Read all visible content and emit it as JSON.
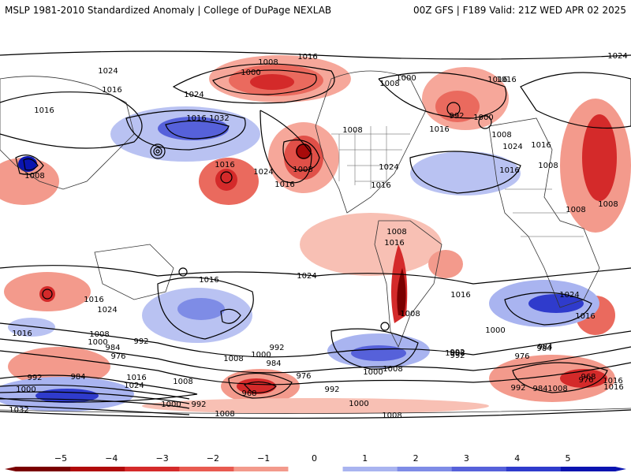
{
  "header": {
    "left": "MSLP 1981-2010 Standardized Anomaly | College of DuPage NEXLAB",
    "right": "00Z GFS | F189 Valid: 21Z WED APR 02 2025"
  },
  "colorbar": {
    "ticks": [
      {
        "value": -5,
        "label": "−5"
      },
      {
        "value": -4,
        "label": "−4"
      },
      {
        "value": -3,
        "label": "−3"
      },
      {
        "value": -2,
        "label": "−2"
      },
      {
        "value": -1,
        "label": "−1"
      },
      {
        "value": 0,
        "label": "0"
      },
      {
        "value": 1,
        "label": "1"
      },
      {
        "value": 2,
        "label": "2"
      },
      {
        "value": 3,
        "label": "3"
      },
      {
        "value": 4,
        "label": "4"
      },
      {
        "value": 5,
        "label": "5"
      }
    ],
    "colors": [
      "#7a0000",
      "#b00a0a",
      "#d42a2a",
      "#e85a50",
      "#f39a8c",
      "#ffffff",
      "#a9b4f0",
      "#7e8ce6",
      "#5661da",
      "#2f3bcc",
      "#0a14b0"
    ]
  },
  "isobar_labels": [
    "1016",
    "1024",
    "1008",
    "1000",
    "1016",
    "1008",
    "1000",
    "1016",
    "1024",
    "1016",
    "1016",
    "1024",
    "1016",
    "1032",
    "1016",
    "1008",
    "1024",
    "1016",
    "1008",
    "1016",
    "1008",
    "1024",
    "992",
    "1000",
    "1008",
    "1016",
    "1024",
    "1016",
    "1016",
    "1008",
    "1008",
    "1008",
    "1008",
    "1016",
    "1016",
    "1024",
    "1016",
    "1024",
    "1016",
    "1024",
    "1008",
    "1016",
    "1016",
    "1008",
    "1000",
    "992",
    "984",
    "976",
    "992",
    "1000",
    "1008",
    "1008",
    "984",
    "976",
    "992",
    "1008",
    "984",
    "1000",
    "984",
    "992",
    "968",
    "1000",
    "992",
    "992",
    "1000",
    "1008",
    "1008",
    "1000",
    "976",
    "984",
    "1008",
    "992",
    "1032",
    "1008",
    "976",
    "968",
    "1016",
    "1024",
    "1016",
    "984",
    "992",
    "1016",
    "1000"
  ]
}
